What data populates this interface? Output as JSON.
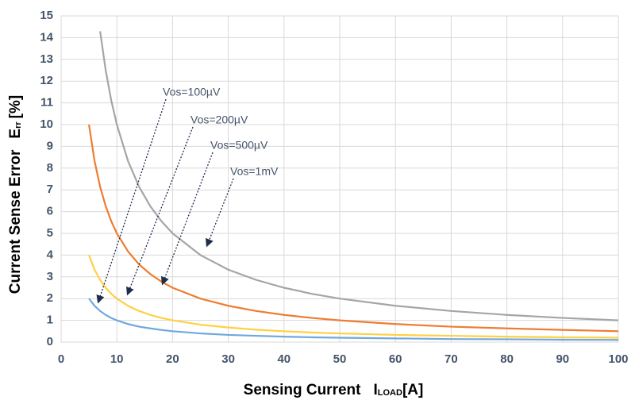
{
  "chart_data": {
    "type": "line",
    "xlabel": {
      "text": "Sensing Current",
      "symbol": "I",
      "subscript": "LOAD",
      "unit": "[A]"
    },
    "ylabel": {
      "text": "Current Sense Error",
      "symbol": "E",
      "subscript": "rr",
      "unit": "[%]"
    },
    "x": [
      5,
      6,
      7,
      8,
      9,
      10,
      12,
      14,
      16,
      18,
      20,
      25,
      30,
      35,
      40,
      45,
      50,
      60,
      70,
      80,
      90,
      100
    ],
    "series": [
      {
        "name": "Vos=100µV",
        "color": "#6fa8dc",
        "values": [
          2,
          1.67,
          1.43,
          1.25,
          1.11,
          1,
          0.83,
          0.71,
          0.63,
          0.56,
          0.5,
          0.4,
          0.33,
          0.29,
          0.25,
          0.22,
          0.2,
          0.17,
          0.14,
          0.13,
          0.11,
          0.1
        ]
      },
      {
        "name": "Vos=200µV",
        "color": "#ffd042",
        "values": [
          4,
          3.33,
          2.86,
          2.5,
          2.22,
          2,
          1.67,
          1.43,
          1.25,
          1.11,
          1,
          0.8,
          0.67,
          0.57,
          0.5,
          0.44,
          0.4,
          0.33,
          0.29,
          0.25,
          0.22,
          0.2
        ]
      },
      {
        "name": "Vos=500µV",
        "color": "#ed7d31",
        "values": [
          10,
          8.33,
          7.14,
          6.25,
          5.56,
          5,
          4.17,
          3.57,
          3.13,
          2.78,
          2.5,
          2,
          1.67,
          1.43,
          1.25,
          1.11,
          1,
          0.83,
          0.71,
          0.63,
          0.56,
          0.5
        ]
      },
      {
        "name": "Vos=1mV",
        "color": "#a5a5a5",
        "values": [
          null,
          null,
          14.29,
          12.5,
          11.11,
          10,
          8.33,
          7.14,
          6.25,
          5.56,
          5,
          4,
          3.33,
          2.86,
          2.5,
          2.22,
          2,
          1.67,
          1.43,
          1.25,
          1.11,
          1
        ]
      }
    ],
    "xlim": [
      0,
      100
    ],
    "xticks": [
      0,
      10,
      20,
      30,
      40,
      50,
      60,
      70,
      80,
      90,
      100
    ],
    "ylim": [
      0,
      15
    ],
    "yticks": [
      0,
      1,
      2,
      3,
      4,
      5,
      6,
      7,
      8,
      9,
      10,
      11,
      12,
      13,
      14,
      15
    ],
    "grid": true
  }
}
